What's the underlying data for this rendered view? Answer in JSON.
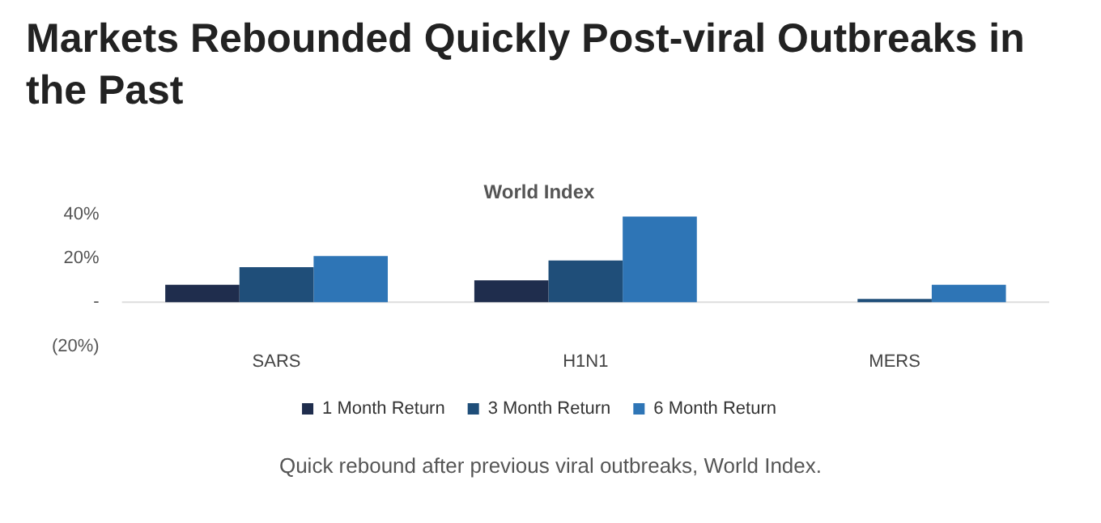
{
  "chart_data": {
    "type": "bar",
    "title": "World Index",
    "subtitle": "Markets Rebounded Quickly Post-viral Outbreaks in the Past",
    "categories": [
      "SARS",
      "H1N1",
      "MERS"
    ],
    "series": [
      {
        "name": "1 Month Return",
        "color": "#1f2d4d",
        "values": [
          8,
          10,
          0
        ]
      },
      {
        "name": "3 Month Return",
        "color": "#1f4e79",
        "values": [
          16,
          19,
          1.5
        ]
      },
      {
        "name": "6 Month Return",
        "color": "#2e75b6",
        "values": [
          21,
          39,
          8
        ]
      }
    ],
    "ylim": [
      -20,
      40
    ],
    "yticks": [
      {
        "value": -20,
        "label": "(20%)"
      },
      {
        "value": 0,
        "label": "-"
      },
      {
        "value": 20,
        "label": "20%"
      },
      {
        "value": 40,
        "label": "40%"
      }
    ],
    "grid": false,
    "legend": "bottom",
    "ref_lines": [
      {
        "axis": "y",
        "value": 0,
        "color": "#dddddd"
      }
    ],
    "annotations": [
      "Quick rebound after previous viral outbreaks, World Index."
    ]
  }
}
